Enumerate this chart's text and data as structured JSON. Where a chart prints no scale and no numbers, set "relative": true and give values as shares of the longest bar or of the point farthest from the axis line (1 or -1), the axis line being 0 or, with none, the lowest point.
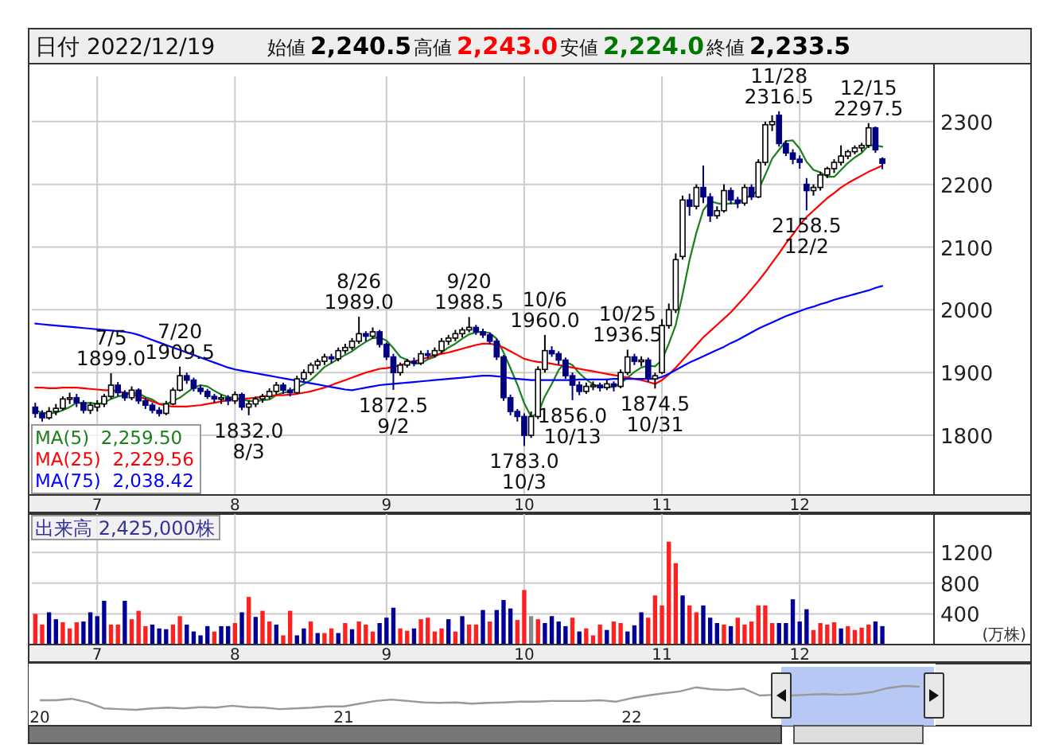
{
  "chart_data": [
    {
      "type": "candlestick",
      "title": "日付 2022/12/19",
      "annotations": [
        "始値 2,240.5",
        "高値 2,243.0",
        "安値 2,224.0",
        "終値 2,233.5",
        {
          "text": "7/5\n1899.0",
          "y": 1899.0
        },
        {
          "text": "7/20\n1909.5",
          "y": 1909.5
        },
        {
          "text": "1832.0\n8/3",
          "y": 1832.0
        },
        {
          "text": "8/26\n1989.0",
          "y": 1989.0
        },
        {
          "text": "1872.5\n9/2",
          "y": 1872.5
        },
        {
          "text": "9/20\n1988.5",
          "y": 1988.5
        },
        {
          "text": "1783.0\n10/3",
          "y": 1783.0
        },
        {
          "text": "10/6\n1960.0",
          "y": 1960.0
        },
        {
          "text": "1856.0\n10/13",
          "y": 1856.0
        },
        {
          "text": "10/25\n1936.5",
          "y": 1936.5
        },
        {
          "text": "1874.5\n10/31",
          "y": 1874.5
        },
        {
          "text": "11/28\n2316.5",
          "y": 2316.5
        },
        {
          "text": "2158.5\n12/2",
          "y": 2158.5
        },
        {
          "text": "12/15\n2297.5",
          "y": 2297.5
        }
      ],
      "categories": [
        null,
        null,
        null,
        null,
        null,
        null,
        null,
        null,
        null,
        "7",
        null,
        null,
        null,
        null,
        null,
        null,
        null,
        null,
        null,
        null,
        null,
        null,
        null,
        null,
        null,
        null,
        null,
        null,
        null,
        "8",
        null,
        null,
        null,
        null,
        null,
        null,
        null,
        null,
        null,
        null,
        null,
        null,
        null,
        null,
        null,
        null,
        null,
        null,
        null,
        null,
        null,
        "9",
        null,
        null,
        null,
        null,
        null,
        null,
        null,
        null,
        null,
        null,
        null,
        null,
        null,
        null,
        null,
        null,
        null,
        null,
        null,
        "10",
        null,
        null,
        null,
        null,
        null,
        null,
        null,
        null,
        null,
        null,
        null,
        null,
        null,
        null,
        null,
        null,
        null,
        null,
        null,
        "11",
        null,
        null,
        null,
        null,
        null,
        null,
        null,
        null,
        null,
        null,
        null,
        null,
        null,
        null,
        null,
        null,
        null,
        null,
        null,
        "12",
        null,
        null,
        null,
        null,
        null,
        null,
        null,
        null,
        null,
        null,
        null,
        null
      ],
      "ohlc": [
        [
          1845,
          1852,
          1828,
          1835
        ],
        [
          1835,
          1840,
          1822,
          1828
        ],
        [
          1828,
          1845,
          1825,
          1838
        ],
        [
          1838,
          1850,
          1832,
          1843
        ],
        [
          1843,
          1862,
          1840,
          1858
        ],
        [
          1858,
          1868,
          1850,
          1860
        ],
        [
          1860,
          1866,
          1845,
          1852
        ],
        [
          1852,
          1856,
          1835,
          1840
        ],
        [
          1840,
          1852,
          1834,
          1848
        ],
        [
          1845,
          1856,
          1838,
          1850
        ],
        [
          1850,
          1866,
          1845,
          1862
        ],
        [
          1862,
          1899.0,
          1858,
          1880
        ],
        [
          1880,
          1885,
          1862,
          1868
        ],
        [
          1868,
          1872,
          1855,
          1860
        ],
        [
          1860,
          1878,
          1856,
          1872
        ],
        [
          1872,
          1875,
          1850,
          1855
        ],
        [
          1855,
          1860,
          1842,
          1848
        ],
        [
          1848,
          1852,
          1835,
          1840
        ],
        [
          1840,
          1845,
          1830,
          1835
        ],
        [
          1835,
          1855,
          1832,
          1850
        ],
        [
          1850,
          1876,
          1848,
          1872
        ],
        [
          1872,
          1909.5,
          1870,
          1895
        ],
        [
          1895,
          1900,
          1882,
          1888
        ],
        [
          1888,
          1892,
          1870,
          1875
        ],
        [
          1875,
          1880,
          1865,
          1870
        ],
        [
          1870,
          1874,
          1858,
          1862
        ],
        [
          1862,
          1866,
          1852,
          1858
        ],
        [
          1858,
          1865,
          1850,
          1860
        ],
        [
          1860,
          1864,
          1848,
          1855
        ],
        [
          1855,
          1870,
          1850,
          1865
        ],
        [
          1865,
          1868,
          1840,
          1845
        ],
        [
          1845,
          1856,
          1832.0,
          1850
        ],
        [
          1850,
          1862,
          1845,
          1858
        ],
        [
          1858,
          1866,
          1852,
          1862
        ],
        [
          1862,
          1875,
          1858,
          1870
        ],
        [
          1870,
          1885,
          1865,
          1880
        ],
        [
          1880,
          1884,
          1866,
          1872
        ],
        [
          1872,
          1876,
          1862,
          1868
        ],
        [
          1868,
          1895,
          1866,
          1890
        ],
        [
          1890,
          1905,
          1886,
          1900
        ],
        [
          1900,
          1916,
          1896,
          1912
        ],
        [
          1912,
          1922,
          1905,
          1918
        ],
        [
          1918,
          1930,
          1912,
          1925
        ],
        [
          1925,
          1930,
          1915,
          1922
        ],
        [
          1922,
          1940,
          1918,
          1935
        ],
        [
          1935,
          1946,
          1930,
          1940
        ],
        [
          1940,
          1955,
          1936,
          1950
        ],
        [
          1950,
          1989.0,
          1946,
          1962
        ],
        [
          1962,
          1966,
          1950,
          1958
        ],
        [
          1958,
          1972,
          1954,
          1965
        ],
        [
          1965,
          1968,
          1940,
          1945
        ],
        [
          1945,
          1948,
          1920,
          1925
        ],
        [
          1925,
          1930,
          1872.5,
          1900
        ],
        [
          1900,
          1916,
          1895,
          1912
        ],
        [
          1912,
          1922,
          1908,
          1918
        ],
        [
          1918,
          1924,
          1910,
          1915
        ],
        [
          1915,
          1935,
          1912,
          1930
        ],
        [
          1930,
          1936,
          1922,
          1928
        ],
        [
          1928,
          1940,
          1924,
          1935
        ],
        [
          1935,
          1955,
          1930,
          1950
        ],
        [
          1950,
          1960,
          1944,
          1955
        ],
        [
          1955,
          1968,
          1950,
          1962
        ],
        [
          1962,
          1972,
          1956,
          1968
        ],
        [
          1968,
          1988.5,
          1964,
          1972
        ],
        [
          1972,
          1976,
          1960,
          1965
        ],
        [
          1965,
          1970,
          1955,
          1960
        ],
        [
          1960,
          1964,
          1945,
          1950
        ],
        [
          1950,
          1954,
          1920,
          1925
        ],
        [
          1925,
          1928,
          1855,
          1860
        ],
        [
          1860,
          1865,
          1832,
          1838
        ],
        [
          1838,
          1842,
          1822,
          1830
        ],
        [
          1830,
          1835,
          1783.0,
          1800
        ],
        [
          1800,
          1838,
          1796,
          1830
        ],
        [
          1830,
          1910,
          1826,
          1905
        ],
        [
          1905,
          1960.0,
          1900,
          1935
        ],
        [
          1935,
          1942,
          1925,
          1930
        ],
        [
          1930,
          1934,
          1912,
          1920
        ],
        [
          1920,
          1924,
          1890,
          1895
        ],
        [
          1895,
          1900,
          1856.0,
          1880
        ],
        [
          1880,
          1886,
          1864,
          1870
        ],
        [
          1870,
          1884,
          1866,
          1878
        ],
        [
          1878,
          1886,
          1872,
          1880
        ],
        [
          1880,
          1884,
          1870,
          1876
        ],
        [
          1876,
          1888,
          1872,
          1882
        ],
        [
          1882,
          1886,
          1870,
          1878
        ],
        [
          1878,
          1905,
          1875,
          1900
        ],
        [
          1900,
          1936.5,
          1896,
          1925
        ],
        [
          1925,
          1930,
          1912,
          1918
        ],
        [
          1918,
          1926,
          1910,
          1920
        ],
        [
          1920,
          1924,
          1885,
          1890
        ],
        [
          1890,
          1900,
          1874.5,
          1895
        ],
        [
          1900,
          1985,
          1898,
          1975
        ],
        [
          1975,
          2010,
          1970,
          2000
        ],
        [
          2000,
          2090,
          1995,
          2080
        ],
        [
          2085,
          2182,
          2080,
          2175
        ],
        [
          2175,
          2185,
          2150,
          2165
        ],
        [
          2165,
          2200,
          2160,
          2195
        ],
        [
          2195,
          2230,
          2170,
          2180
        ],
        [
          2180,
          2186,
          2140,
          2150
        ],
        [
          2150,
          2165,
          2145,
          2158
        ],
        [
          2158,
          2200,
          2155,
          2190
        ],
        [
          2190,
          2195,
          2168,
          2175
        ],
        [
          2175,
          2180,
          2162,
          2170
        ],
        [
          2170,
          2200,
          2166,
          2195
        ],
        [
          2195,
          2200,
          2175,
          2180
        ],
        [
          2180,
          2240,
          2178,
          2235
        ],
        [
          2235,
          2300,
          2230,
          2295
        ],
        [
          2295,
          2310,
          2285,
          2300
        ],
        [
          2310,
          2316.5,
          2260,
          2265
        ],
        [
          2265,
          2270,
          2245,
          2250
        ],
        [
          2250,
          2256,
          2232,
          2240
        ],
        [
          2240,
          2246,
          2225,
          2235
        ],
        [
          2200,
          2210,
          2158.5,
          2190
        ],
        [
          2190,
          2200,
          2182,
          2195
        ],
        [
          2195,
          2220,
          2190,
          2215
        ],
        [
          2215,
          2228,
          2210,
          2225
        ],
        [
          2225,
          2240,
          2218,
          2235
        ],
        [
          2235,
          2262,
          2230,
          2245
        ],
        [
          2245,
          2255,
          2240,
          2252
        ],
        [
          2252,
          2262,
          2248,
          2258
        ],
        [
          2258,
          2266,
          2252,
          2262
        ],
        [
          2262,
          2297.5,
          2258,
          2290
        ],
        [
          2290,
          2292,
          2250,
          2255
        ],
        [
          2240.5,
          2243.0,
          2224.0,
          2233.5
        ]
      ],
      "series": [
        {
          "type": "line",
          "name": "MA(5)  2,259.50",
          "color": "#1a801a",
          "values": [
            1840,
            1836,
            1835,
            1836,
            1840,
            1845,
            1852,
            1851,
            1852,
            1850,
            1852,
            1858,
            1862,
            1864,
            1868,
            1867,
            1861,
            1857,
            1850,
            1850,
            1855,
            1860,
            1868,
            1876,
            1880,
            1878,
            1871,
            1865,
            1861,
            1860,
            1857,
            1855,
            1854,
            1856,
            1857,
            1864,
            1868,
            1870,
            1876,
            1882,
            1888,
            1898,
            1909,
            1915,
            1922,
            1928,
            1934,
            1942,
            1949,
            1955,
            1956,
            1951,
            1939,
            1925,
            1920,
            1914,
            1915,
            1921,
            1925,
            1932,
            1940,
            1946,
            1954,
            1961,
            1964,
            1965,
            1963,
            1954,
            1932,
            1907,
            1881,
            1851,
            1830,
            1835,
            1862,
            1882,
            1904,
            1917,
            1912,
            1899,
            1889,
            1881,
            1877,
            1877,
            1877,
            1883,
            1892,
            1901,
            1908,
            1911,
            1910,
            1920,
            1946,
            1976,
            2025,
            2079,
            2123,
            2159,
            2173,
            2170,
            2168,
            2170,
            2169,
            2178,
            2182,
            2191,
            2215,
            2241,
            2255,
            2269,
            2270,
            2257,
            2236,
            2223,
            2219,
            2212,
            2212,
            2223,
            2234,
            2243,
            2250,
            2262,
            2262,
            2260
          ]
        },
        {
          "type": "line",
          "name": "MA(25)  2,229.56",
          "color": "#ff0000",
          "values": [
            1876,
            1876,
            1875,
            1875,
            1876,
            1876,
            1876,
            1875,
            1874,
            1873,
            1872,
            1872,
            1870,
            1868,
            1866,
            1862,
            1858,
            1854,
            1850,
            1847,
            1846,
            1846,
            1846,
            1847,
            1848,
            1850,
            1852,
            1854,
            1856,
            1858,
            1858,
            1859,
            1860,
            1862,
            1863,
            1864,
            1864,
            1865,
            1866,
            1868,
            1870,
            1873,
            1876,
            1880,
            1884,
            1888,
            1892,
            1896,
            1900,
            1903,
            1906,
            1907,
            1909,
            1912,
            1915,
            1918,
            1921,
            1924,
            1927,
            1930,
            1932,
            1935,
            1938,
            1941,
            1944,
            1946,
            1946,
            1944,
            1940,
            1934,
            1928,
            1922,
            1919,
            1917,
            1916,
            1914,
            1912,
            1910,
            1908,
            1906,
            1904,
            1902,
            1900,
            1898,
            1896,
            1894,
            1892,
            1890,
            1888,
            1885,
            1882,
            1888,
            1897,
            1908,
            1920,
            1932,
            1944,
            1956,
            1966,
            1976,
            1986,
            1996,
            2008,
            2020,
            2033,
            2046,
            2060,
            2075,
            2090,
            2106,
            2120,
            2135,
            2148,
            2158,
            2168,
            2178,
            2186,
            2195,
            2202,
            2208,
            2214,
            2220,
            2225,
            2230
          ]
        },
        {
          "type": "line",
          "name": "MA(75)  2,038.42",
          "color": "#0000ff",
          "values": [
            1978,
            1977,
            1976,
            1975,
            1974,
            1973,
            1972,
            1971,
            1970,
            1969,
            1968,
            1967,
            1966,
            1965,
            1963,
            1960,
            1956,
            1952,
            1948,
            1944,
            1940,
            1936,
            1932,
            1928,
            1924,
            1920,
            1916,
            1912,
            1908,
            1905,
            1903,
            1901,
            1899,
            1897,
            1895,
            1893,
            1891,
            1889,
            1887,
            1885,
            1883,
            1881,
            1879,
            1877,
            1875,
            1873,
            1872,
            1874,
            1876,
            1878,
            1880,
            1881,
            1882,
            1883,
            1884,
            1885,
            1886,
            1887,
            1888,
            1889,
            1890,
            1891,
            1892,
            1893,
            1894,
            1895,
            1895,
            1894,
            1893,
            1891,
            1890,
            1889,
            1888,
            1888,
            1888,
            1888,
            1888,
            1888,
            1888,
            1889,
            1889,
            1889,
            1889,
            1889,
            1890,
            1890,
            1890,
            1890,
            1890,
            1890,
            1890,
            1893,
            1898,
            1904,
            1910,
            1916,
            1921,
            1926,
            1931,
            1936,
            1941,
            1947,
            1952,
            1958,
            1964,
            1970,
            1975,
            1980,
            1985,
            1990,
            1994,
            1998,
            2002,
            2005,
            2009,
            2012,
            2016,
            2019,
            2022,
            2025,
            2028,
            2031,
            2035,
            2038
          ]
        }
      ],
      "ylim": [
        1705,
        2372
      ],
      "yticks": [
        1800,
        1900,
        2000,
        2100,
        2200,
        2300
      ],
      "grid": true,
      "legend": "bottom left"
    },
    {
      "type": "bar",
      "title": "出来高 2,425,000株",
      "ylabel": "(万株)",
      "categories": [
        null,
        null,
        null,
        null,
        null,
        null,
        null,
        null,
        null,
        "7",
        null,
        null,
        null,
        null,
        null,
        null,
        null,
        null,
        null,
        null,
        null,
        null,
        null,
        null,
        null,
        null,
        null,
        null,
        null,
        "8",
        null,
        null,
        null,
        null,
        null,
        null,
        null,
        null,
        null,
        null,
        null,
        null,
        null,
        null,
        null,
        null,
        null,
        null,
        null,
        null,
        null,
        "9",
        null,
        null,
        null,
        null,
        null,
        null,
        null,
        null,
        null,
        null,
        null,
        null,
        null,
        null,
        null,
        null,
        null,
        null,
        null,
        "10",
        null,
        null,
        null,
        null,
        null,
        null,
        null,
        null,
        null,
        null,
        null,
        null,
        null,
        null,
        null,
        null,
        null,
        null,
        null,
        "11",
        null,
        null,
        null,
        null,
        null,
        null,
        null,
        null,
        null,
        null,
        null,
        null,
        null,
        null,
        null,
        null,
        null,
        null,
        null,
        "12",
        null,
        null,
        null,
        null,
        null,
        null,
        null,
        null,
        null,
        null,
        null,
        null
      ],
      "values": [
        400,
        260,
        420,
        330,
        290,
        210,
        290,
        300,
        420,
        370,
        570,
        260,
        260,
        570,
        330,
        440,
        240,
        260,
        210,
        200,
        260,
        370,
        260,
        170,
        120,
        240,
        170,
        240,
        240,
        280,
        420,
        620,
        360,
        440,
        300,
        260,
        120,
        440,
        120,
        210,
        300,
        150,
        150,
        210,
        150,
        280,
        200,
        300,
        260,
        170,
        280,
        350,
        480,
        210,
        180,
        210,
        330,
        350,
        170,
        210,
        330,
        170,
        370,
        260,
        260,
        450,
        300,
        450,
        580,
        470,
        320,
        710,
        370,
        330,
        280,
        370,
        300,
        240,
        350,
        170,
        210,
        120,
        260,
        190,
        300,
        280,
        170,
        250,
        420,
        350,
        640,
        510,
        1340,
        1060,
        640,
        510,
        420,
        510,
        350,
        280,
        260,
        240,
        350,
        260,
        300,
        510,
        510,
        280,
        280,
        280,
        590,
        300,
        460,
        190,
        280,
        260,
        290,
        210,
        240,
        190,
        220,
        260,
        300,
        240
      ],
      "colors": [
        "#ff2020",
        "#ff2020",
        "#000099",
        "#000099",
        "#ff2020",
        "#ff2020",
        "#ff2020",
        "#000099",
        "#000099",
        "#000099",
        "#000099",
        "#ff2020",
        "#ff2020",
        "#000099",
        "#ff2020",
        "#ff2020",
        "#ff2020",
        "#000099",
        "#000099",
        "#000099",
        "#ff2020",
        "#ff2020",
        "#000099",
        "#000099",
        "#000099",
        "#000099",
        "#ff2020",
        "#000099",
        "#000099",
        "#ff2020",
        "#000099",
        "#ff2020",
        "#000099",
        "#ff2020",
        "#ff2020",
        "#000099",
        "#ff2020",
        "#ff2020",
        "#000099",
        "#000099",
        "#ff2020",
        "#000099",
        "#ff2020",
        "#ff2020",
        "#000099",
        "#ff2020",
        "#000099",
        "#ff2020",
        "#ff2020",
        "#ff2020",
        "#000099",
        "#000099",
        "#000099",
        "#ff2020",
        "#ff2020",
        "#000099",
        "#ff2020",
        "#ff2020",
        "#ff2020",
        "#ff2020",
        "#000099",
        "#ff2020",
        "#000099",
        "#ff2020",
        "#ff2020",
        "#000099",
        "#ff2020",
        "#000099",
        "#000099",
        "#000099",
        "#ff2020",
        "#ff2020",
        "#888888",
        "#ff2020",
        "#000099",
        "#000099",
        "#000099",
        "#000099",
        "#ff2020",
        "#000099",
        "#ff2020",
        "#ff2020",
        "#ff2020",
        "#000099",
        "#ff2020",
        "#ff2020",
        "#000099",
        "#000099",
        "#000099",
        "#ff2020",
        "#ff2020",
        "#ff2020",
        "#ff2020",
        "#ff2020",
        "#000099",
        "#ff2020",
        "#ff2020",
        "#000099",
        "#000099",
        "#000099",
        "#ff2020",
        "#000099",
        "#ff2020",
        "#ff2020",
        "#ff2020",
        "#ff2020",
        "#ff2020",
        "#ff2020",
        "#000099",
        "#000099",
        "#000099",
        "#000099",
        "#000099",
        "#ff2020",
        "#ff2020",
        "#ff2020",
        "#ff2020",
        "#000099",
        "#ff2020",
        "#ff2020",
        "#ff2020",
        "#ff2020",
        "#000099",
        "#000099"
      ],
      "ylim": [
        0,
        1700
      ],
      "yticks": [
        400,
        800,
        1200
      ],
      "grid": true
    },
    {
      "type": "line",
      "relative": true,
      "color": "#999999",
      "categories": [
        "20",
        null,
        null,
        null,
        null,
        null,
        null,
        null,
        null,
        null,
        null,
        null,
        null,
        null,
        null,
        null,
        null,
        null,
        null,
        "21",
        null,
        null,
        null,
        null,
        null,
        null,
        null,
        null,
        null,
        null,
        null,
        null,
        null,
        null,
        null,
        null,
        null,
        "22",
        null,
        null,
        null,
        null,
        null,
        null,
        null,
        null,
        null,
        null,
        null,
        null,
        null,
        null,
        null,
        null,
        null,
        null
      ],
      "values": [
        0.4,
        0.4,
        0.46,
        0.31,
        0.06,
        0.03,
        0,
        0.06,
        0.09,
        0.06,
        0.11,
        0.09,
        0.17,
        0.11,
        0.09,
        0.03,
        0.06,
        0.09,
        0.14,
        0.14,
        0.26,
        0.37,
        0.43,
        0.37,
        0.31,
        0.29,
        0.31,
        0.26,
        0.29,
        0.31,
        0.34,
        0.34,
        0.37,
        0.37,
        0.37,
        0.4,
        0.34,
        0.49,
        0.6,
        0.69,
        0.77,
        0.94,
        0.86,
        0.83,
        0.89,
        0.6,
        0.63,
        0.6,
        0.63,
        0.66,
        0.63,
        0.66,
        0.74,
        0.91,
        1,
        0.97
      ]
    }
  ]
}
